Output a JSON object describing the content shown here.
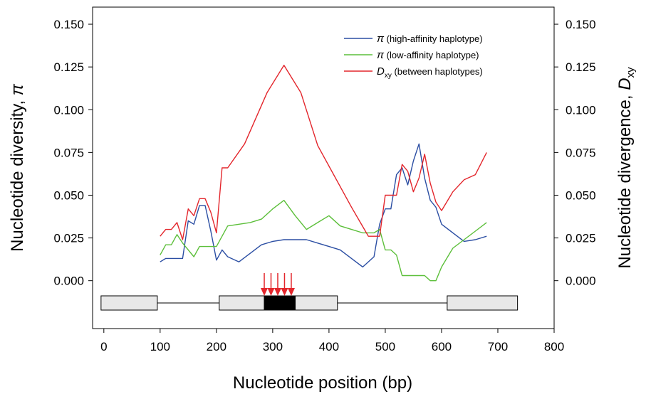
{
  "chart_data": {
    "type": "line",
    "title": "",
    "xlabel": "Nucleotide position (bp)",
    "ylabel_left_text": "Nucleotide diversity, ",
    "ylabel_left_symbol": "π",
    "ylabel_right_text": "Nucleotide divergence, ",
    "ylabel_right_symbol": "D",
    "ylabel_right_subscript": "xy",
    "xlim": [
      -20,
      800
    ],
    "ylim": [
      -0.028,
      0.16
    ],
    "x_ticks": [
      "0",
      "100",
      "200",
      "300",
      "400",
      "500",
      "600",
      "700",
      "800"
    ],
    "x_tick_values": [
      0,
      100,
      200,
      300,
      400,
      500,
      600,
      700,
      800
    ],
    "y_ticks": [
      "0.000",
      "0.025",
      "0.050",
      "0.075",
      "0.100",
      "0.125",
      "0.150"
    ],
    "y_tick_values": [
      0,
      0.025,
      0.05,
      0.075,
      0.1,
      0.125,
      0.15
    ],
    "grid": false,
    "legend_position": "top-right",
    "series": [
      {
        "name": "(high-affinity haplotype)",
        "symbol": "π",
        "color": "#2b4ea3",
        "x": [
          100,
          110,
          120,
          130,
          140,
          150,
          160,
          170,
          180,
          190,
          200,
          210,
          220,
          240,
          260,
          280,
          300,
          320,
          340,
          360,
          380,
          400,
          420,
          440,
          460,
          480,
          490,
          500,
          510,
          520,
          530,
          540,
          550,
          560,
          570,
          580,
          590,
          600,
          620,
          640,
          660,
          680
        ],
        "y": [
          0.011,
          0.013,
          0.013,
          0.013,
          0.013,
          0.035,
          0.033,
          0.044,
          0.044,
          0.029,
          0.012,
          0.018,
          0.014,
          0.011,
          0.016,
          0.021,
          0.023,
          0.024,
          0.024,
          0.024,
          0.022,
          0.02,
          0.018,
          0.013,
          0.008,
          0.014,
          0.033,
          0.042,
          0.042,
          0.062,
          0.066,
          0.056,
          0.07,
          0.08,
          0.06,
          0.047,
          0.043,
          0.033,
          0.028,
          0.023,
          0.024,
          0.026
        ]
      },
      {
        "name": "(low-affinity haplotype)",
        "symbol": "π",
        "color": "#5cbf3a",
        "x": [
          100,
          110,
          120,
          130,
          140,
          160,
          170,
          180,
          200,
          220,
          240,
          260,
          280,
          300,
          320,
          340,
          360,
          380,
          400,
          420,
          440,
          460,
          480,
          490,
          500,
          510,
          520,
          530,
          540,
          550,
          560,
          570,
          580,
          590,
          600,
          620,
          640,
          660,
          680
        ],
        "y": [
          0.015,
          0.021,
          0.021,
          0.027,
          0.022,
          0.014,
          0.02,
          0.02,
          0.02,
          0.032,
          0.033,
          0.034,
          0.036,
          0.042,
          0.047,
          0.038,
          0.03,
          0.034,
          0.038,
          0.032,
          0.03,
          0.028,
          0.028,
          0.03,
          0.018,
          0.018,
          0.015,
          0.003,
          0.003,
          0.003,
          0.003,
          0.003,
          0.0,
          0.0,
          0.008,
          0.019,
          0.024,
          0.029,
          0.034
        ]
      },
      {
        "name": "(between haplotypes)",
        "symbol": "D",
        "symbol_subscript": "xy",
        "color": "#e3262c",
        "x": [
          100,
          110,
          120,
          130,
          140,
          150,
          160,
          170,
          180,
          190,
          200,
          210,
          220,
          250,
          290,
          320,
          350,
          380,
          410,
          440,
          470,
          490,
          500,
          510,
          520,
          530,
          540,
          550,
          560,
          570,
          580,
          590,
          600,
          620,
          640,
          660,
          680
        ],
        "y": [
          0.026,
          0.03,
          0.03,
          0.034,
          0.024,
          0.042,
          0.038,
          0.048,
          0.048,
          0.04,
          0.028,
          0.066,
          0.066,
          0.08,
          0.11,
          0.126,
          0.11,
          0.079,
          0.061,
          0.043,
          0.026,
          0.026,
          0.05,
          0.05,
          0.05,
          0.068,
          0.064,
          0.052,
          0.06,
          0.074,
          0.057,
          0.046,
          0.041,
          0.052,
          0.059,
          0.062,
          0.075
        ]
      }
    ],
    "gene_model": {
      "exons": [
        [
          -5,
          95
        ],
        [
          205,
          285
        ],
        [
          340,
          415
        ],
        [
          610,
          735
        ]
      ],
      "cds": [
        285,
        340
      ],
      "intron_line": [
        95,
        610
      ],
      "arrow_positions": [
        285,
        297,
        309,
        321,
        333
      ],
      "exon_fill": "#e8e8e8",
      "cds_fill": "#000000",
      "arrow_color": "#e3262c"
    }
  }
}
